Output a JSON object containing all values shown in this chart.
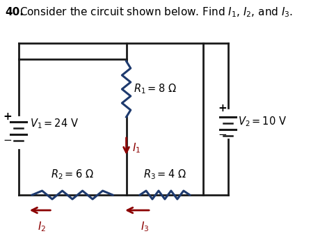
{
  "bg_color": "#ffffff",
  "wire_color": "#1a1a1a",
  "resistor_color": "#1e3a6e",
  "battery_color": "#1a1a1a",
  "current_color": "#8b0000",
  "labels": {
    "R1": "$R_1 = 8\\ \\Omega$",
    "R2": "$R_2 = 6\\ \\Omega$",
    "R3": "$R_3 = 4\\ \\Omega$",
    "V1": "$V_1 = 24\\ \\mathrm{V}$",
    "V2": "$V_2 = 10\\ \\mathrm{V}$",
    "I1": "$I_1$",
    "I2": "$I_2$",
    "I3": "$I_3$"
  },
  "title": {
    "num": "40.",
    "text": "Consider the circuit shown below. Find $I_1$, $I_2$, and $I_3$."
  }
}
